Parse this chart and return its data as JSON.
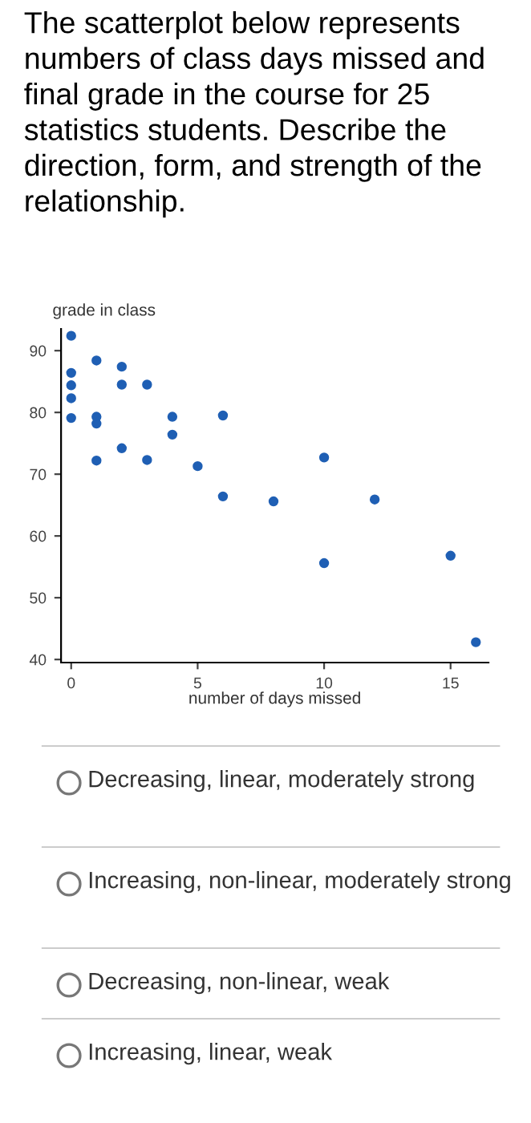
{
  "chart_data": {
    "type": "scatter",
    "title": "The scatterplot below represents numbers of class days missed and final grade in the course for 25 statistics students. Describe the direction, form, and strength of the relationship.",
    "ylabel": "grade in class",
    "xlabel": "number of days missed",
    "x": [
      0,
      0,
      0,
      0,
      0,
      1,
      1,
      1,
      1,
      2,
      2,
      2,
      3,
      3,
      4,
      4,
      5,
      6,
      6,
      8,
      10,
      10,
      12,
      15,
      16
    ],
    "values": [
      92.4,
      86.4,
      84.4,
      82.3,
      79.1,
      88.4,
      79.3,
      78.2,
      72.2,
      87.4,
      84.5,
      74.2,
      84.5,
      72.3,
      79.3,
      76.4,
      71.3,
      79.5,
      66.4,
      65.6,
      72.7,
      55.6,
      65.9,
      56.8,
      42.8
    ],
    "color": "#1f5fb4",
    "marker": "circle",
    "xlim": [
      -0.4,
      16.5
    ],
    "ylim": [
      39.5,
      93.5
    ],
    "xticks": [
      0,
      5,
      10,
      15
    ],
    "yticks": [
      40,
      50,
      60,
      70,
      80,
      90
    ],
    "grid": false,
    "annotations": [
      "Decreasing, linear, moderately strong",
      "Increasing, non-linear, moderately strong",
      "Decreasing, non-linear, weak",
      "Increasing, linear, weak"
    ]
  }
}
